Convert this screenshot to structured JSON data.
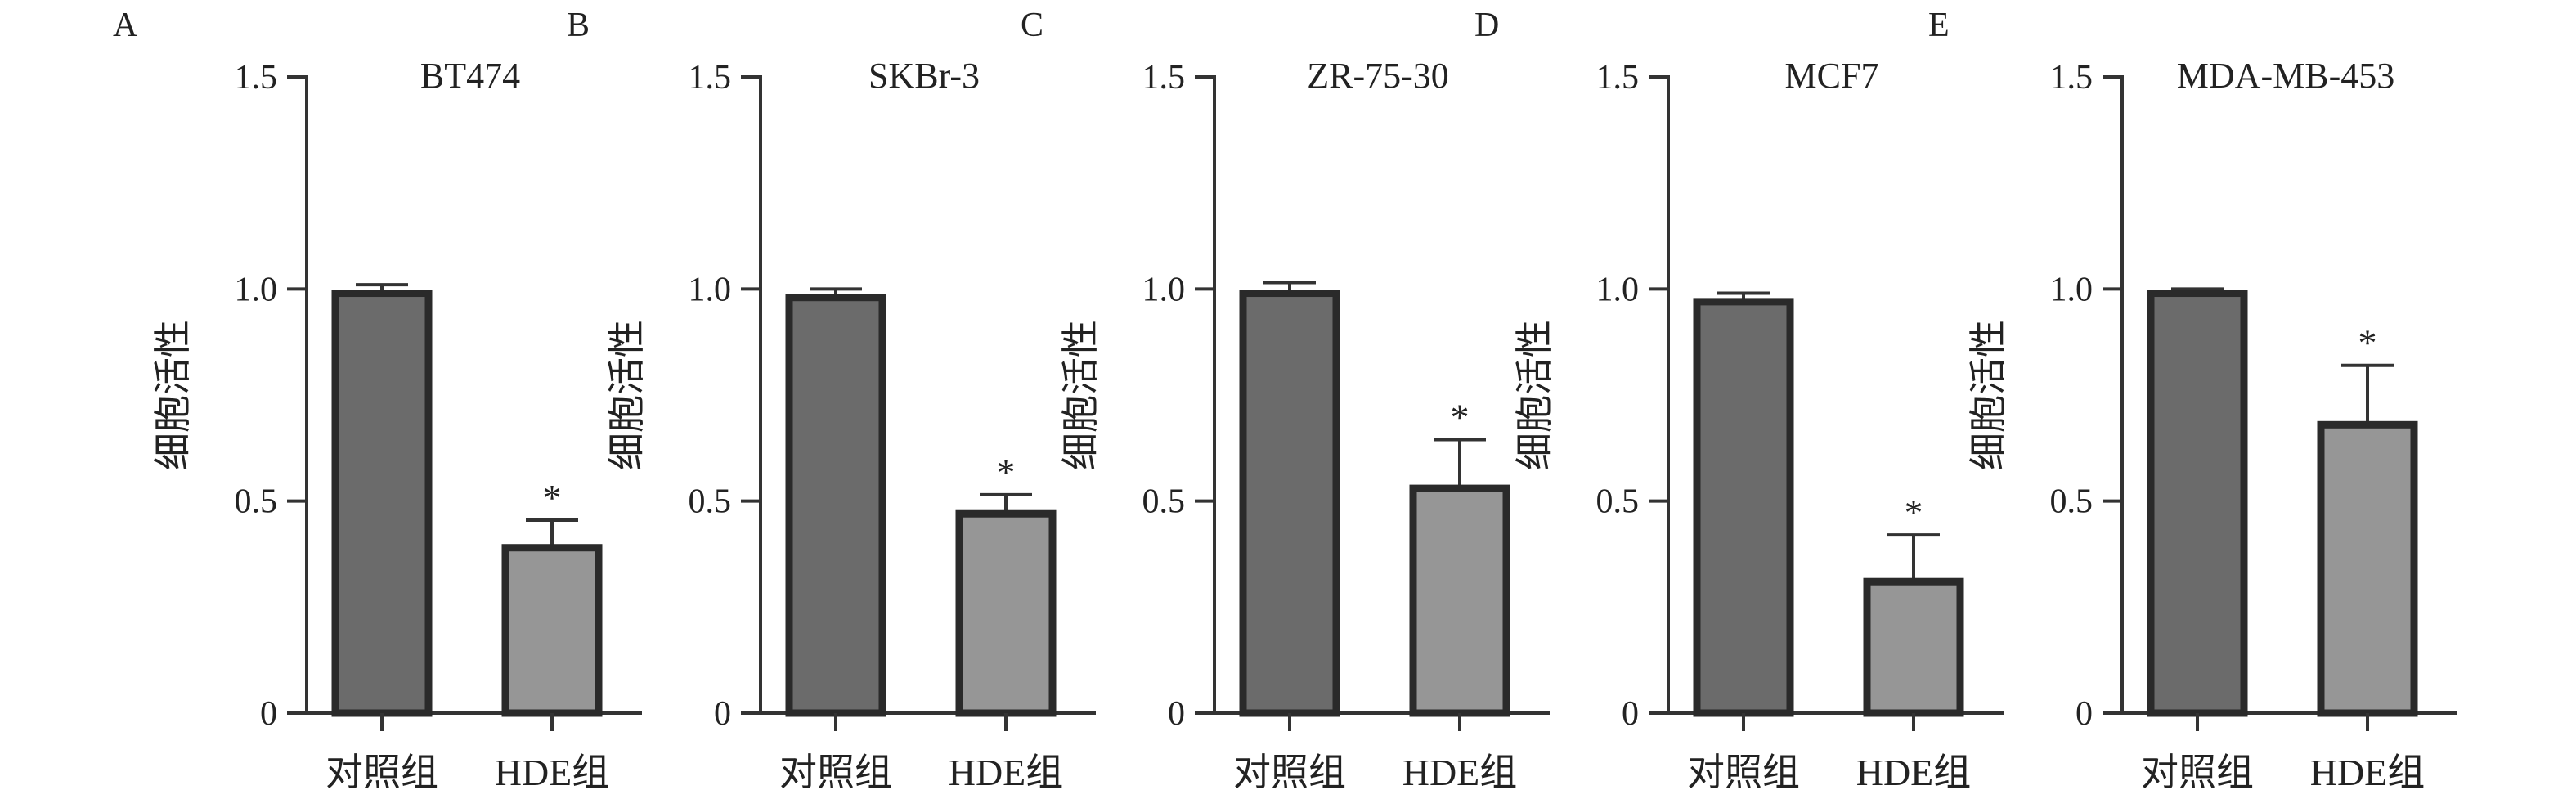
{
  "chart_data": [
    {
      "type": "bar",
      "panel_label": "A",
      "title": "BT474",
      "ylabel": "细胞活性",
      "xlabel": "",
      "categories": [
        "对照组",
        "HDE组"
      ],
      "values": [
        0.99,
        0.39
      ],
      "error": [
        0.02,
        0.065
      ],
      "significance": [
        "",
        "*"
      ],
      "ylim": [
        0,
        1.5
      ],
      "yticks": [
        0,
        0.5,
        1.0,
        1.5
      ],
      "ytick_labels": [
        "0",
        "0.5",
        "1.0",
        "1.5"
      ],
      "bar_colors": [
        "#6b6b6b",
        "#969696"
      ],
      "grid": false
    },
    {
      "type": "bar",
      "panel_label": "B",
      "title": "SKBr-3",
      "ylabel": "细胞活性",
      "xlabel": "",
      "categories": [
        "对照组",
        "HDE组"
      ],
      "values": [
        0.98,
        0.47
      ],
      "error": [
        0.02,
        0.045
      ],
      "significance": [
        "",
        "*"
      ],
      "ylim": [
        0,
        1.5
      ],
      "yticks": [
        0,
        0.5,
        1.0,
        1.5
      ],
      "ytick_labels": [
        "0",
        "0.5",
        "1.0",
        "1.5"
      ],
      "bar_colors": [
        "#6b6b6b",
        "#969696"
      ],
      "grid": false
    },
    {
      "type": "bar",
      "panel_label": "C",
      "title": "ZR-75-30",
      "ylabel": "细胞活性",
      "xlabel": "",
      "categories": [
        "对照组",
        "HDE组"
      ],
      "values": [
        0.99,
        0.53
      ],
      "error": [
        0.025,
        0.115
      ],
      "significance": [
        "",
        "*"
      ],
      "ylim": [
        0,
        1.5
      ],
      "yticks": [
        0,
        0.5,
        1.0,
        1.5
      ],
      "ytick_labels": [
        "0",
        "0.5",
        "1.0",
        "1.5"
      ],
      "bar_colors": [
        "#6b6b6b",
        "#969696"
      ],
      "grid": false
    },
    {
      "type": "bar",
      "panel_label": "D",
      "title": "MCF7",
      "ylabel": "细胞活性",
      "xlabel": "",
      "categories": [
        "对照组",
        "HDE组"
      ],
      "values": [
        0.97,
        0.31
      ],
      "error": [
        0.02,
        0.11
      ],
      "significance": [
        "",
        "*"
      ],
      "ylim": [
        0,
        1.5
      ],
      "yticks": [
        0,
        0.5,
        1.0,
        1.5
      ],
      "ytick_labels": [
        "0",
        "0.5",
        "1.0",
        "1.5"
      ],
      "bar_colors": [
        "#6b6b6b",
        "#969696"
      ],
      "grid": false
    },
    {
      "type": "bar",
      "panel_label": "E",
      "title": "MDA-MB-453",
      "ylabel": "细胞活性",
      "xlabel": "",
      "categories": [
        "对照组",
        "HDE组"
      ],
      "values": [
        0.99,
        0.68
      ],
      "error": [
        0.01,
        0.14
      ],
      "significance": [
        "",
        "*"
      ],
      "ylim": [
        0,
        1.5
      ],
      "yticks": [
        0,
        0.5,
        1.0,
        1.5
      ],
      "ytick_labels": [
        "0",
        "0.5",
        "1.0",
        "1.5"
      ],
      "bar_colors": [
        "#6b6b6b",
        "#969696"
      ],
      "grid": false
    }
  ]
}
